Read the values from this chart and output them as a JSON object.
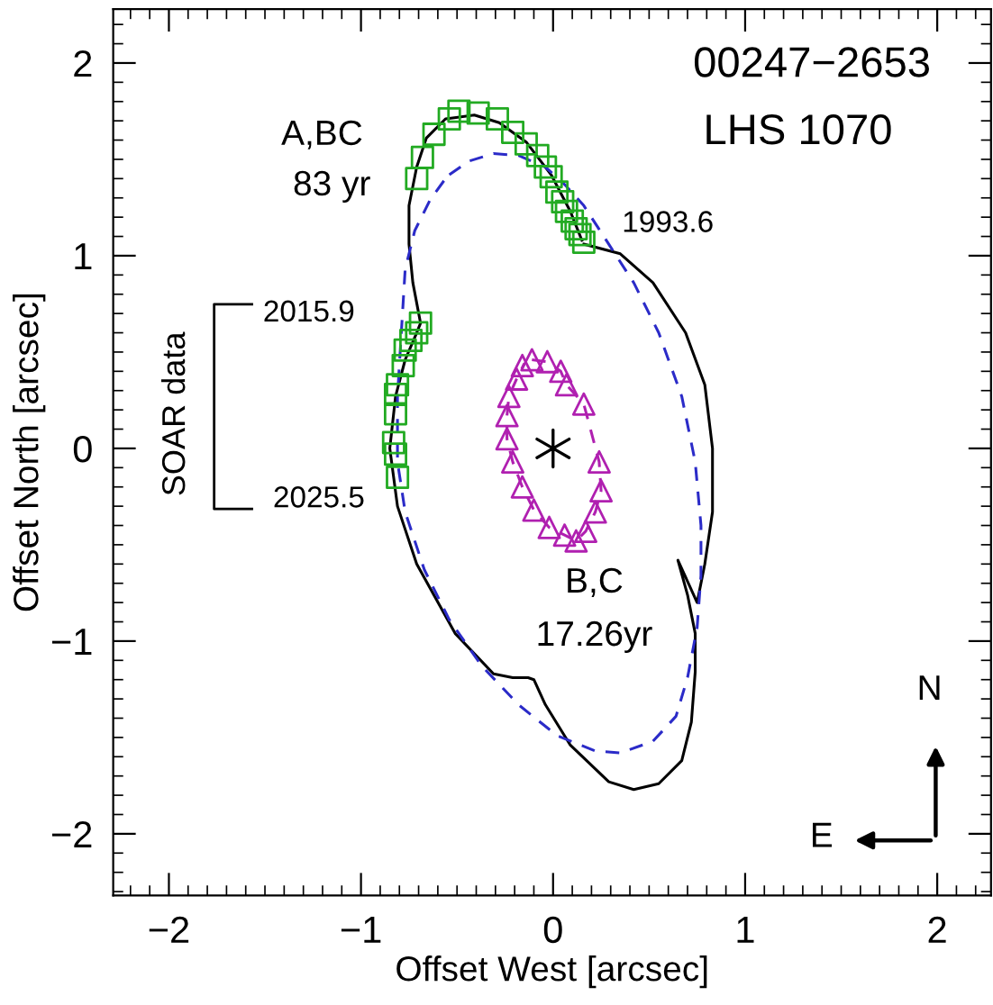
{
  "chart_data": {
    "type": "line",
    "title": "00247−2653",
    "subtitle": "LHS 1070",
    "xlabel": "Offset West [arcsec]",
    "ylabel": "Offset North [arcsec]",
    "xlim": [
      -2.29,
      2.28
    ],
    "ylim": [
      -2.32,
      2.28
    ],
    "xticks": [
      {
        "value": -2,
        "label": "−2"
      },
      {
        "value": -1,
        "label": "−1"
      },
      0,
      1,
      2
    ],
    "yticks": [
      {
        "value": -2,
        "label": "−2"
      },
      {
        "value": -1,
        "label": "−1"
      },
      0,
      1,
      2
    ],
    "grid": false,
    "legend": false,
    "series": [
      {
        "color": "#000000",
        "line_style": "solid",
        "marker": "none",
        "x": [
          0.16,
          0.35,
          0.52,
          0.69,
          0.79,
          0.83,
          0.83,
          0.79,
          0.75,
          0.65,
          0.7,
          0.74,
          0.74,
          0.72,
          0.67,
          0.55,
          0.42,
          0.29,
          0.09,
          -0.04,
          -0.1,
          -0.13,
          -0.21,
          -0.31,
          -0.51,
          -0.71,
          -0.81,
          -0.85,
          -0.82,
          -0.77,
          -0.71,
          -0.69,
          -0.73,
          -0.75,
          -0.75,
          -0.71,
          -0.66,
          -0.56,
          -0.41,
          -0.28,
          -0.14,
          -0.01,
          0.09,
          0.15
        ],
        "values": [
          1.06,
          1.01,
          0.86,
          0.6,
          0.33,
          0.0,
          -0.33,
          -0.6,
          -0.8,
          -0.58,
          -0.76,
          -0.96,
          -1.16,
          -1.42,
          -1.62,
          -1.74,
          -1.77,
          -1.73,
          -1.54,
          -1.33,
          -1.2,
          -1.19,
          -1.19,
          -1.17,
          -0.96,
          -0.6,
          -0.3,
          0.0,
          0.27,
          0.46,
          0.6,
          0.65,
          0.86,
          1.06,
          1.26,
          1.46,
          1.61,
          1.71,
          1.73,
          1.69,
          1.59,
          1.42,
          1.23,
          1.08
        ]
      },
      {
        "color": "#2b2bc8",
        "line_style": "dashed",
        "marker": "none",
        "x": [
          -0.54,
          -0.44,
          -0.31,
          -0.18,
          -0.04,
          0.06,
          0.16,
          0.29,
          0.42,
          0.55,
          0.67,
          0.74,
          0.77,
          0.77,
          0.75,
          0.7,
          0.64,
          0.52,
          0.35,
          0.22,
          0.02,
          -0.18,
          -0.37,
          -0.54,
          -0.67,
          -0.77,
          -0.81,
          -0.81,
          -0.79,
          -0.77,
          -0.72,
          -0.64,
          -0.56
        ],
        "values": [
          1.42,
          1.49,
          1.53,
          1.52,
          1.46,
          1.37,
          1.26,
          1.06,
          0.86,
          0.6,
          0.27,
          -0.07,
          -0.4,
          -0.66,
          -0.93,
          -1.19,
          -1.39,
          -1.52,
          -1.58,
          -1.57,
          -1.49,
          -1.33,
          -1.13,
          -0.89,
          -0.63,
          -0.33,
          -0.07,
          0.27,
          0.6,
          0.93,
          1.13,
          1.29,
          1.4
        ]
      },
      {
        "color": "#b020b0",
        "line_style": "dashed",
        "marker": "none",
        "x": [
          -0.11,
          -0.03,
          0.04,
          0.07,
          0.16,
          0.24,
          0.25,
          0.22,
          0.17,
          0.12,
          0.06,
          -0.02,
          -0.1,
          -0.16,
          -0.21,
          -0.24,
          -0.24,
          -0.23,
          -0.19,
          -0.15
        ],
        "values": [
          0.46,
          0.45,
          0.4,
          0.33,
          0.23,
          -0.07,
          -0.22,
          -0.33,
          -0.43,
          -0.48,
          -0.45,
          -0.41,
          -0.32,
          -0.2,
          -0.07,
          0.05,
          0.17,
          0.27,
          0.36,
          0.44
        ]
      },
      {
        "type": "scatter",
        "color": "#22aa22",
        "marker": "square",
        "x": [
          -0.71,
          -0.68,
          -0.62,
          -0.54,
          -0.49,
          -0.39,
          -0.29,
          -0.21,
          -0.14,
          -0.08,
          -0.04,
          -0.01,
          0.02,
          0.05,
          0.07,
          0.1,
          0.12,
          0.14,
          0.16,
          -0.69,
          -0.71,
          -0.74,
          -0.77,
          -0.78,
          -0.81,
          -0.82,
          -0.82,
          -0.83,
          -0.82,
          -0.81
        ],
        "values": [
          1.4,
          1.51,
          1.63,
          1.71,
          1.75,
          1.74,
          1.71,
          1.64,
          1.58,
          1.52,
          1.46,
          1.41,
          1.33,
          1.28,
          1.23,
          1.18,
          1.14,
          1.11,
          1.07,
          0.65,
          0.6,
          0.56,
          0.51,
          0.43,
          0.33,
          0.28,
          0.18,
          0.03,
          -0.03,
          -0.15
        ]
      },
      {
        "type": "scatter",
        "color": "#b020b0",
        "marker": "triangle",
        "x": [
          -0.11,
          -0.03,
          0.04,
          0.07,
          0.16,
          0.24,
          0.25,
          0.22,
          0.17,
          0.12,
          0.06,
          -0.02,
          -0.1,
          -0.16,
          -0.21,
          -0.24,
          -0.24,
          -0.23,
          -0.19,
          -0.16
        ],
        "values": [
          0.46,
          0.45,
          0.4,
          0.33,
          0.23,
          -0.07,
          -0.22,
          -0.33,
          -0.43,
          -0.48,
          -0.45,
          -0.41,
          -0.32,
          -0.2,
          -0.07,
          0.05,
          0.17,
          0.27,
          0.36,
          0.43
        ]
      },
      {
        "type": "scatter",
        "color": "#000000",
        "marker": "cross",
        "x": [
          0
        ],
        "values": [
          0
        ]
      }
    ],
    "annotations": [
      "A,BC",
      "83 yr",
      {
        "text": "1993.6",
        "x": 0.16,
        "y": 1.07
      },
      "SOAR data",
      {
        "text": "2015.9",
        "x": -0.69,
        "y": 0.65
      },
      {
        "text": "2025.5",
        "x": -0.81,
        "y": -0.15
      },
      "B,C",
      "17.26yr",
      "N",
      "E"
    ]
  }
}
